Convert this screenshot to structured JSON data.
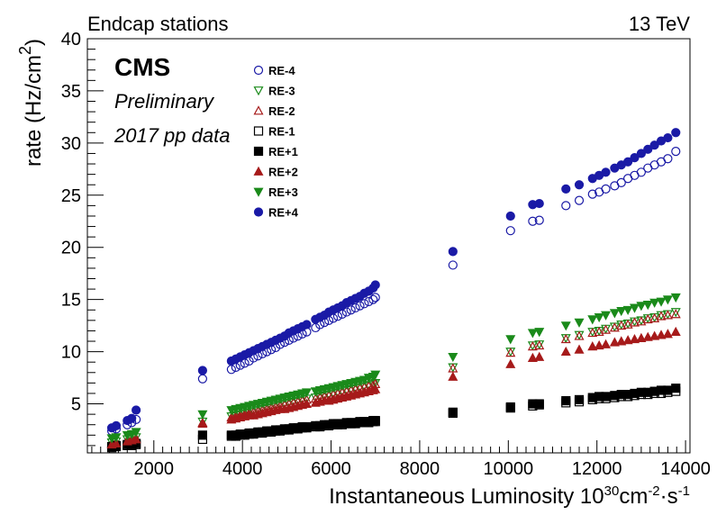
{
  "header": {
    "left": "Endcap stations",
    "right": "13 TeV",
    "cms": "CMS",
    "preliminary": "Preliminary",
    "dataset": "2017 pp data"
  },
  "chart_data": {
    "type": "scatter",
    "xlabel_main": "Instantaneous Luminosity 10",
    "xlabel_sup1": "30",
    "xlabel_mid": "cm",
    "xlabel_sup2": "-2",
    "xlabel_mid2": "·s",
    "xlabel_sup3": "-1",
    "ylabel_main": "rate (Hz/cm",
    "ylabel_sup": "2",
    "ylabel_end": ")",
    "xlim": [
      500,
      14100
    ],
    "ylim": [
      0.3,
      40
    ],
    "x_ticks": [
      2000,
      4000,
      6000,
      8000,
      10000,
      12000,
      14000
    ],
    "x_tick_labels": [
      "2000",
      "4000",
      "6000",
      "8000",
      "10000",
      "12000",
      "14000"
    ],
    "y_ticks": [
      5,
      10,
      15,
      20,
      25,
      30,
      35,
      40
    ],
    "y_tick_labels": [
      "5",
      "10",
      "15",
      "20",
      "25",
      "30",
      "35",
      "40"
    ],
    "legend_position": "top-left",
    "lumi": [
      1050,
      1150,
      1400,
      1500,
      1600,
      3100,
      3750,
      3850,
      3950,
      4050,
      4150,
      4250,
      4350,
      4450,
      4550,
      4650,
      4750,
      4850,
      4950,
      5050,
      5150,
      5250,
      5350,
      5450,
      5650,
      5750,
      5850,
      5950,
      6050,
      6150,
      6250,
      6350,
      6450,
      6550,
      6650,
      6750,
      6850,
      6950,
      7000,
      8750,
      10050,
      10550,
      10700,
      11300,
      11600,
      11900,
      12050,
      12200,
      12400,
      12550,
      12700,
      12850,
      13000,
      13150,
      13300,
      13450,
      13600,
      13780
    ],
    "series": [
      {
        "name": "RE-4",
        "marker": "circle-open",
        "color": "#1a1aa6",
        "values": [
          2.4,
          2.6,
          3.0,
          3.2,
          3.5,
          7.4,
          8.3,
          8.5,
          8.7,
          8.9,
          9.1,
          9.4,
          9.6,
          9.8,
          10.0,
          10.2,
          10.4,
          10.7,
          10.9,
          11.1,
          11.3,
          11.5,
          11.7,
          11.9,
          12.3,
          12.6,
          12.8,
          13.0,
          13.2,
          13.4,
          13.6,
          13.8,
          14.0,
          14.2,
          14.4,
          14.6,
          14.8,
          15.0,
          15.2,
          18.3,
          21.6,
          22.5,
          22.6,
          24.0,
          24.5,
          25.1,
          25.3,
          25.6,
          25.9,
          26.2,
          26.6,
          26.9,
          27.2,
          27.6,
          27.9,
          28.2,
          28.5,
          29.2
        ]
      },
      {
        "name": "RE-3",
        "marker": "triangle-down-open",
        "color": "#1a8a1a",
        "values": [
          1.3,
          1.4,
          1.6,
          1.7,
          1.8,
          3.3,
          3.8,
          3.9,
          4.0,
          4.1,
          4.2,
          4.3,
          4.4,
          4.5,
          4.6,
          4.7,
          4.8,
          4.9,
          5.0,
          5.1,
          5.2,
          5.3,
          5.4,
          5.5,
          5.6,
          5.7,
          5.8,
          5.9,
          6.0,
          6.1,
          6.2,
          6.3,
          6.4,
          6.5,
          6.6,
          6.7,
          6.8,
          6.9,
          7.0,
          8.5,
          10.0,
          10.6,
          10.7,
          11.3,
          11.6,
          11.9,
          12.0,
          12.2,
          12.4,
          12.6,
          12.7,
          12.9,
          13.0,
          13.2,
          13.3,
          13.5,
          13.6,
          13.8
        ]
      },
      {
        "name": "RE-2",
        "marker": "triangle-up-open",
        "color": "#a61a1a",
        "values": [
          1.2,
          1.3,
          1.5,
          1.6,
          1.7,
          3.2,
          3.7,
          3.8,
          3.9,
          4.0,
          4.1,
          4.2,
          4.3,
          4.4,
          4.5,
          4.6,
          4.7,
          4.8,
          4.9,
          5.0,
          5.1,
          5.2,
          5.3,
          5.4,
          5.5,
          5.6,
          5.7,
          5.8,
          5.9,
          6.0,
          6.1,
          6.2,
          6.3,
          6.4,
          6.5,
          6.6,
          6.7,
          6.8,
          6.9,
          8.4,
          9.9,
          10.5,
          10.6,
          11.2,
          11.5,
          11.8,
          11.9,
          12.1,
          12.3,
          12.5,
          12.6,
          12.8,
          12.9,
          13.1,
          13.2,
          13.4,
          13.5,
          13.6
        ]
      },
      {
        "name": "RE-1",
        "marker": "square-open",
        "color": "#000000",
        "values": [
          0.8,
          0.9,
          1.0,
          1.0,
          1.1,
          1.6,
          1.9,
          1.9,
          2.0,
          2.0,
          2.1,
          2.1,
          2.2,
          2.2,
          2.3,
          2.3,
          2.4,
          2.4,
          2.5,
          2.5,
          2.6,
          2.6,
          2.7,
          2.7,
          2.8,
          2.8,
          2.9,
          2.9,
          3.0,
          3.0,
          3.0,
          3.1,
          3.1,
          3.1,
          3.2,
          3.2,
          3.2,
          3.3,
          3.3,
          4.1,
          4.6,
          4.8,
          4.9,
          5.1,
          5.2,
          5.4,
          5.5,
          5.5,
          5.6,
          5.7,
          5.7,
          5.8,
          5.9,
          5.9,
          6.0,
          6.0,
          6.1,
          6.2
        ]
      },
      {
        "name": "RE+1",
        "marker": "square-filled",
        "color": "#000000",
        "values": [
          0.9,
          1.0,
          1.1,
          1.1,
          1.2,
          2.0,
          2.0,
          2.0,
          2.1,
          2.1,
          2.2,
          2.2,
          2.3,
          2.3,
          2.4,
          2.4,
          2.5,
          2.5,
          2.6,
          2.6,
          2.7,
          2.7,
          2.8,
          2.8,
          2.9,
          2.9,
          3.0,
          3.0,
          3.1,
          3.1,
          3.1,
          3.2,
          3.2,
          3.2,
          3.3,
          3.3,
          3.3,
          3.4,
          3.4,
          4.2,
          4.7,
          5.0,
          5.0,
          5.3,
          5.4,
          5.6,
          5.7,
          5.7,
          5.8,
          5.9,
          5.9,
          6.0,
          6.1,
          6.1,
          6.2,
          6.3,
          6.3,
          6.5
        ]
      },
      {
        "name": "RE+2",
        "marker": "triangle-up-filled",
        "color": "#a61a1a",
        "values": [
          1.1,
          1.2,
          1.4,
          1.5,
          1.6,
          3.1,
          3.5,
          3.6,
          3.7,
          3.8,
          3.9,
          3.9,
          4.0,
          4.1,
          4.2,
          4.3,
          4.4,
          4.5,
          4.5,
          4.6,
          4.7,
          4.8,
          4.9,
          5.0,
          5.1,
          5.2,
          5.3,
          5.3,
          5.4,
          5.5,
          5.6,
          5.7,
          5.8,
          5.9,
          6.0,
          6.1,
          6.2,
          6.3,
          6.4,
          7.6,
          8.8,
          9.4,
          9.5,
          10.0,
          10.2,
          10.5,
          10.6,
          10.7,
          10.9,
          11.0,
          11.1,
          11.2,
          11.3,
          11.4,
          11.5,
          11.6,
          11.7,
          11.9
        ]
      },
      {
        "name": "RE+3",
        "marker": "triangle-down-filled",
        "color": "#1a8a1a",
        "values": [
          1.7,
          1.8,
          2.0,
          2.1,
          2.3,
          4.0,
          4.4,
          4.5,
          4.6,
          4.7,
          4.8,
          4.9,
          5.0,
          5.1,
          5.2,
          5.3,
          5.4,
          5.5,
          5.6,
          5.7,
          5.8,
          5.9,
          6.0,
          6.1,
          6.2,
          6.3,
          6.4,
          6.5,
          6.6,
          6.7,
          6.8,
          6.9,
          7.0,
          7.1,
          7.2,
          7.3,
          7.5,
          7.6,
          7.8,
          9.5,
          11.2,
          11.8,
          11.9,
          12.5,
          12.8,
          13.1,
          13.3,
          13.5,
          13.7,
          13.9,
          14.0,
          14.2,
          14.4,
          14.5,
          14.7,
          14.8,
          15.0,
          15.2
        ]
      },
      {
        "name": "RE+4",
        "marker": "circle-filled",
        "color": "#1a1aa6",
        "values": [
          2.7,
          2.9,
          3.4,
          3.6,
          4.4,
          8.2,
          9.1,
          9.3,
          9.5,
          9.7,
          9.9,
          10.1,
          10.3,
          10.5,
          10.7,
          10.9,
          11.1,
          11.3,
          11.5,
          11.8,
          12.0,
          12.2,
          12.4,
          12.6,
          13.1,
          13.3,
          13.5,
          13.8,
          14.0,
          14.2,
          14.4,
          14.7,
          14.9,
          15.1,
          15.3,
          15.6,
          15.8,
          16.1,
          16.4,
          19.6,
          23.0,
          24.1,
          24.2,
          25.6,
          26.0,
          26.6,
          26.9,
          27.2,
          27.6,
          27.9,
          28.2,
          28.6,
          29.0,
          29.4,
          29.8,
          30.2,
          30.5,
          31.0
        ]
      }
    ]
  }
}
